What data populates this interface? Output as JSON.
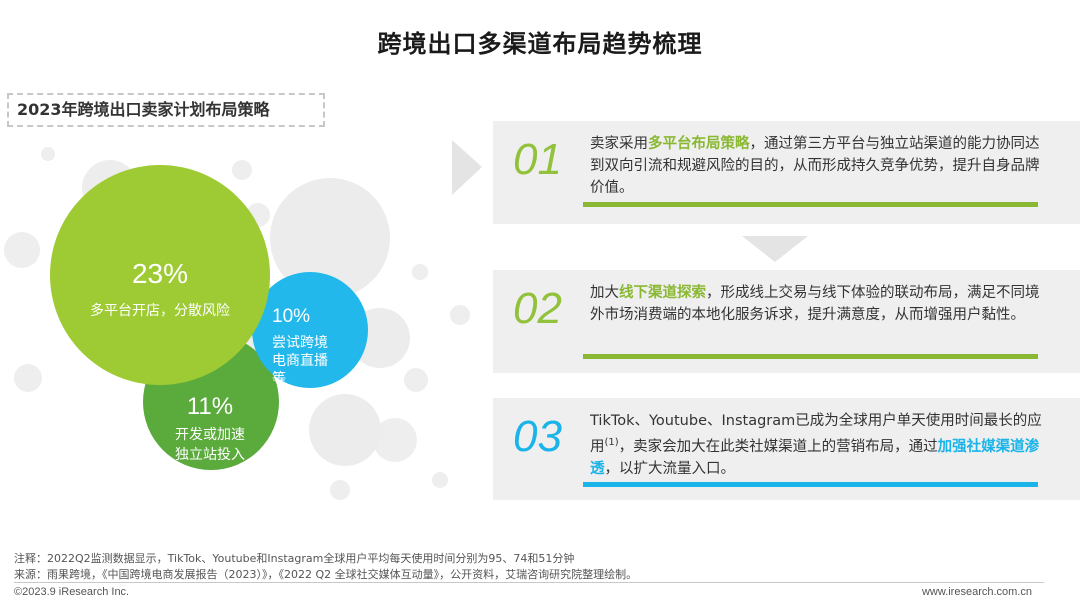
{
  "page": {
    "title": "跨境出口多渠道布局趋势梳理",
    "subtitle": "2023年跨境出口卖家计划布局策略"
  },
  "chart_data": {
    "type": "bubble",
    "title": "2023年跨境出口卖家计划布局策略",
    "items": [
      {
        "label": "多平台开店，分散风险",
        "value": 23,
        "value_text": "23%",
        "color": "#9ecb34"
      },
      {
        "label": "尝试跨境电商直播等",
        "value": 10,
        "value_text": "10%",
        "color": "#22b8ec"
      },
      {
        "label": "开发或加速独立站投入",
        "value": 11,
        "value_text": "11%",
        "color": "#5aaa3c"
      }
    ]
  },
  "circles": {
    "c1": {
      "pct": "23%",
      "label": "多平台开店，分散风险"
    },
    "c2": {
      "pct": "10%",
      "line1": "尝试跨境",
      "line2": "电商直播",
      "line3": "等"
    },
    "c3": {
      "pct": "11%",
      "line1": "开发或加速",
      "line2": "独立站投入"
    }
  },
  "panels": [
    {
      "num": "01",
      "pre": "卖家采用",
      "hl": "多平台布局策略",
      "post": "，通过第三方平台与独立站渠道的能力协同达到双向引流和规避风险的目的，从而形成持久竞争优势，提升自身品牌价值。",
      "bar_color": "#8ab833"
    },
    {
      "num": "02",
      "pre": "加大",
      "hl": "线下渠道探索",
      "post": "，形成线上交易与线下体验的联动布局，满足不同境外市场消费端的本地化服务诉求，提升满意度，从而增强用户黏性。",
      "bar_color": "#8ab833"
    },
    {
      "num": "03",
      "pre": "TikTok、Youtube、Instagram已成为全球用户单天使用时间最长的应用",
      "sup": "(1)",
      "mid": "，卖家会加大在此类社媒渠道上的营销布局，通过",
      "hl": "加强社媒渠道渗透",
      "post": "，以扩大流量入口。",
      "bar_color": "#1ab4e8"
    }
  ],
  "notes": {
    "note1": "注释：2022Q2监测数据显示，TikTok、Youtube和Instagram全球用户平均每天使用时间分别为95、74和51分钟",
    "note2": "来源：雨果跨境，《中国跨境电商发展报告（2023）》，《2022 Q2 全球社交媒体互动量》，公开资料，艾瑞咨询研究院整理绘制。"
  },
  "footer": {
    "left": "©2023.9 iResearch Inc.",
    "right": "www.iresearch.com.cn"
  }
}
